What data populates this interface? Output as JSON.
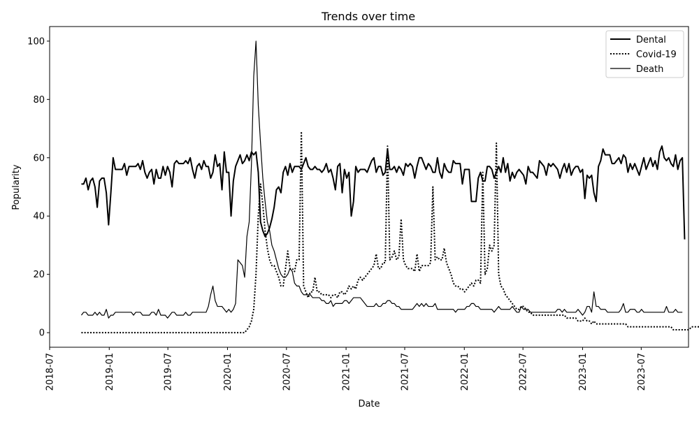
{
  "chart_data": {
    "type": "line",
    "title": "Trends over time",
    "xlabel": "Date",
    "ylabel": "Popularity",
    "x_ticks": [
      "2018-07",
      "2019-01",
      "2019-07",
      "2020-01",
      "2020-07",
      "2021-01",
      "2021-07",
      "2022-01",
      "2022-07",
      "2023-01",
      "2023-07"
    ],
    "y_ticks": [
      "0",
      "20",
      "40",
      "60",
      "80",
      "100"
    ],
    "xlim": [
      "2018-07-01",
      "2023-11-24"
    ],
    "ylim": [
      -5,
      105
    ],
    "grid": false,
    "legend_position": "top-right",
    "x_start": "2018-10-07",
    "x_step_days": 7,
    "series": [
      {
        "name": "Dental",
        "style": "solid-thick",
        "color": "#000000",
        "values": [
          51,
          51,
          53,
          49,
          52,
          53,
          50,
          43,
          52,
          53,
          53,
          48,
          37,
          48,
          60,
          56,
          56,
          56,
          56,
          58,
          54,
          57,
          57,
          57,
          57,
          58,
          56,
          59,
          55,
          53,
          55,
          56,
          51,
          56,
          53,
          53,
          57,
          54,
          57,
          55,
          50,
          58,
          59,
          58,
          58,
          58,
          59,
          58,
          60,
          56,
          53,
          57,
          58,
          56,
          59,
          57,
          57,
          53,
          55,
          61,
          57,
          58,
          49,
          62,
          55,
          55,
          40,
          52,
          57,
          59,
          61,
          58,
          59,
          61,
          59,
          62,
          61,
          62,
          55,
          38,
          35,
          33,
          34,
          36,
          39,
          43,
          49,
          50,
          48,
          55,
          57,
          54,
          58,
          55,
          57,
          57,
          57,
          56,
          58,
          60,
          57,
          56,
          56,
          57,
          56,
          56,
          55,
          56,
          58,
          55,
          56,
          53,
          49,
          57,
          58,
          48,
          56,
          53,
          55,
          40,
          45,
          57,
          55,
          56,
          56,
          56,
          55,
          57,
          59,
          60,
          55,
          57,
          57,
          54,
          55,
          63,
          56,
          56,
          57,
          55,
          57,
          56,
          54,
          58,
          57,
          58,
          57,
          53,
          57,
          60,
          60,
          58,
          56,
          58,
          57,
          55,
          55,
          60,
          55,
          53,
          58,
          56,
          55,
          55,
          59,
          58,
          58,
          58,
          51,
          56,
          56,
          56,
          45,
          45,
          45,
          53,
          55,
          52,
          52,
          57,
          57,
          56,
          53,
          55,
          57,
          55,
          60,
          55,
          58,
          52,
          55,
          53,
          55,
          56,
          55,
          54,
          51,
          57,
          55,
          55,
          54,
          53,
          59,
          58,
          57,
          54,
          58,
          57,
          58,
          57,
          56,
          53,
          56,
          58,
          55,
          58,
          54,
          56,
          57,
          57,
          55,
          56,
          46,
          54,
          53,
          54,
          48,
          45,
          57,
          59,
          63,
          61,
          61,
          61,
          58,
          58,
          59,
          60,
          58,
          61,
          60,
          55,
          58,
          56,
          58,
          56,
          54,
          57,
          60,
          56,
          58,
          60,
          57,
          59,
          56,
          62,
          64,
          60,
          59,
          60,
          58,
          57,
          61,
          56,
          59,
          60,
          32
        ]
      },
      {
        "name": "Covid-19",
        "style": "dotted",
        "color": "#000000",
        "values": [
          0,
          0,
          0,
          0,
          0,
          0,
          0,
          0,
          0,
          0,
          0,
          0,
          0,
          0,
          0,
          0,
          0,
          0,
          0,
          0,
          0,
          0,
          0,
          0,
          0,
          0,
          0,
          0,
          0,
          0,
          0,
          0,
          0,
          0,
          0,
          0,
          0,
          0,
          0,
          0,
          0,
          0,
          0,
          0,
          0,
          0,
          0,
          0,
          0,
          0,
          0,
          0,
          0,
          0,
          0,
          0,
          0,
          0,
          0,
          0,
          0,
          0,
          0,
          0,
          0,
          0,
          0,
          0,
          0,
          0,
          0,
          0,
          0,
          1,
          2,
          4,
          8,
          20,
          40,
          51,
          44,
          35,
          29,
          25,
          23,
          23,
          21,
          19,
          16,
          16,
          22,
          28,
          22,
          22,
          21,
          25,
          25,
          69,
          16,
          14,
          12,
          14,
          14,
          19,
          14,
          14,
          13,
          13,
          13,
          13,
          12,
          13,
          13,
          12,
          14,
          14,
          13,
          14,
          16,
          15,
          16,
          15,
          18,
          19,
          18,
          19,
          20,
          21,
          22,
          23,
          27,
          22,
          22,
          24,
          24,
          64,
          25,
          26,
          28,
          25,
          26,
          39,
          25,
          23,
          22,
          22,
          22,
          21,
          27,
          21,
          23,
          23,
          23,
          23,
          24,
          50,
          25,
          26,
          25,
          25,
          29,
          24,
          22,
          20,
          17,
          16,
          16,
          15,
          15,
          14,
          15,
          16,
          17,
          16,
          18,
          18,
          17,
          55,
          20,
          22,
          30,
          28,
          30,
          65,
          20,
          16,
          15,
          13,
          12,
          11,
          10,
          9,
          8,
          8,
          9,
          9,
          8,
          7,
          7,
          6,
          6,
          6,
          6,
          6,
          6,
          6,
          6,
          6,
          6,
          6,
          6,
          6,
          6,
          6,
          5,
          5,
          5,
          5,
          5,
          4,
          4,
          4,
          5,
          4,
          4,
          3,
          4,
          3,
          3,
          3,
          3,
          3,
          3,
          3,
          3,
          3,
          3,
          3,
          3,
          3,
          3,
          2,
          2,
          2,
          2,
          2,
          2,
          2,
          2,
          2,
          2,
          2,
          2,
          2,
          2,
          2,
          2,
          2,
          2,
          2,
          2,
          1,
          1,
          1,
          1,
          1,
          1,
          1,
          1,
          2,
          2,
          2,
          2,
          2
        ]
      },
      {
        "name": "Death",
        "style": "solid-thin",
        "color": "#000000",
        "values": [
          6,
          7,
          7,
          6,
          6,
          6,
          7,
          6,
          7,
          6,
          6,
          8,
          5,
          6,
          6,
          7,
          7,
          7,
          7,
          7,
          7,
          7,
          7,
          6,
          7,
          7,
          7,
          6,
          6,
          6,
          6,
          7,
          7,
          6,
          8,
          6,
          6,
          6,
          5,
          6,
          7,
          7,
          6,
          6,
          6,
          6,
          7,
          6,
          6,
          7,
          7,
          7,
          7,
          7,
          7,
          7,
          9,
          13,
          16,
          11,
          9,
          9,
          9,
          8,
          7,
          8,
          7,
          8,
          10,
          25,
          24,
          23,
          19,
          33,
          38,
          58,
          88,
          100,
          78,
          65,
          53,
          45,
          38,
          35,
          30,
          28,
          25,
          22,
          20,
          19,
          19,
          20,
          22,
          21,
          17,
          16,
          16,
          14,
          13,
          13,
          13,
          13,
          12,
          12,
          12,
          12,
          11,
          11,
          10,
          10,
          11,
          9,
          10,
          10,
          10,
          10,
          11,
          11,
          10,
          11,
          12,
          12,
          12,
          12,
          11,
          10,
          9,
          9,
          9,
          9,
          10,
          9,
          9,
          10,
          10,
          11,
          11,
          10,
          10,
          9,
          9,
          8,
          8,
          8,
          8,
          8,
          8,
          9,
          10,
          9,
          10,
          9,
          10,
          9,
          9,
          9,
          10,
          8,
          8,
          8,
          8,
          8,
          8,
          8,
          8,
          7,
          8,
          8,
          8,
          8,
          9,
          9,
          10,
          10,
          9,
          9,
          8,
          8,
          8,
          8,
          8,
          8,
          7,
          8,
          9,
          8,
          8,
          8,
          8,
          8,
          9,
          8,
          7,
          7,
          9,
          8,
          8,
          8,
          7,
          7,
          7,
          7,
          7,
          7,
          7,
          7,
          7,
          7,
          7,
          7,
          8,
          8,
          7,
          8,
          7,
          7,
          7,
          7,
          7,
          8,
          7,
          6,
          7,
          9,
          9,
          7,
          14,
          9,
          9,
          8,
          8,
          8,
          7,
          7,
          7,
          7,
          7,
          7,
          8,
          10,
          7,
          7,
          8,
          8,
          8,
          7,
          7,
          8,
          7,
          7,
          7,
          7,
          7,
          7,
          7,
          7,
          7,
          7,
          9,
          7,
          7,
          7,
          8,
          7,
          7,
          7
        ]
      }
    ]
  }
}
